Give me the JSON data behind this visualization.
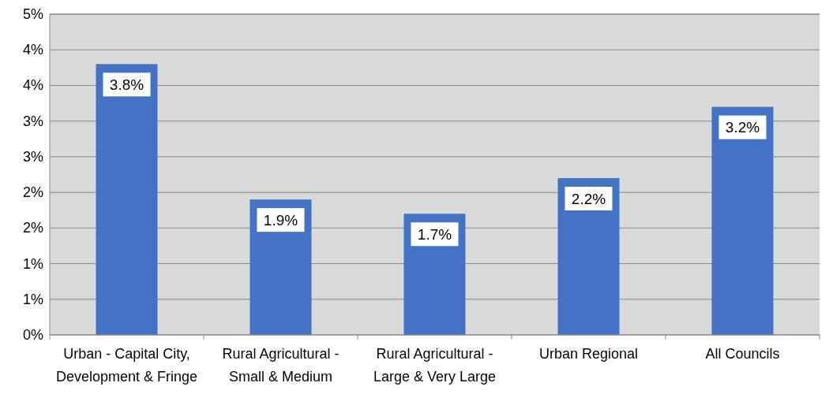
{
  "chart_data": {
    "type": "bar",
    "categories": [
      "Urban -  Capital City, Development & Fringe",
      "Rural Agricultural - Small & Medium",
      "Rural Agricultural - Large & Very Large",
      "Urban Regional",
      "All Councils"
    ],
    "values": [
      3.8,
      1.9,
      1.7,
      2.2,
      3.2
    ],
    "value_labels": [
      "3.8%",
      "1.9%",
      "1.7%",
      "2.2%",
      "3.2%"
    ],
    "color": "#4472c4",
    "ylim": [
      0,
      4.5
    ],
    "yticks": [
      {
        "value": 0,
        "label": "0%"
      },
      {
        "value": 0.5,
        "label": "1%"
      },
      {
        "value": 1,
        "label": "1%"
      },
      {
        "value": 1.5,
        "label": "2%"
      },
      {
        "value": 2,
        "label": "2%"
      },
      {
        "value": 2.5,
        "label": "3%"
      },
      {
        "value": 3,
        "label": "3%"
      },
      {
        "value": 3.5,
        "label": "4%"
      },
      {
        "value": 4,
        "label": "4%"
      },
      {
        "value": 4.5,
        "label": "5%"
      }
    ],
    "grid": "y"
  }
}
